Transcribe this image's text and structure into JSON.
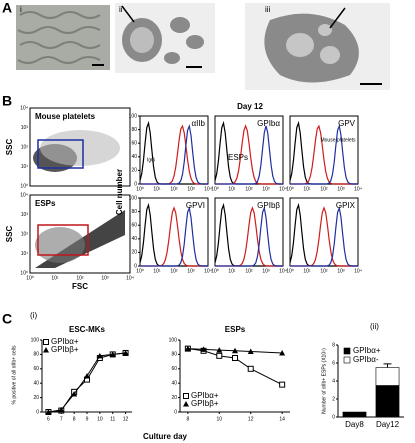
{
  "panel_labels": [
    "A",
    "B",
    "C"
  ],
  "panel_a": {
    "images": [
      "i",
      "ii",
      "iii"
    ]
  },
  "panel_b": {
    "dot_plot_labels": [
      "Mouse platelets",
      "ESPs"
    ],
    "y_label": "SSC",
    "x_label": "FSC",
    "log_ticks": [
      "10⁰",
      "10¹",
      "10²",
      "10³",
      "10⁴"
    ],
    "title": "Day 12",
    "hist_y_label": "Cell number",
    "hist_yticks": [
      0,
      20,
      40,
      60,
      80,
      100
    ],
    "histograms": [
      "αIIb",
      "GPIbα",
      "GPV",
      "GPVI",
      "GPIbβ",
      "GPIX"
    ],
    "igg_label": "IgG",
    "esps_label": "ESPs",
    "platelets_label": "Mouse platelets"
  },
  "panel_c": {
    "sub_labels": [
      "(i)",
      "(ii)"
    ],
    "x_label": "Culture day",
    "y_label": "% positive of all αIIb+ cells"
  },
  "chart_data": [
    {
      "type": "line",
      "title": "ESC-MKs",
      "x": [
        6,
        7,
        8,
        9,
        10,
        11,
        12
      ],
      "xlim": [
        5.5,
        12.5
      ],
      "xticks": [
        6,
        7,
        8,
        9,
        10,
        11,
        12
      ],
      "ylim": [
        0,
        100
      ],
      "yticks": [
        0,
        20,
        40,
        60,
        80,
        100
      ],
      "legend": "upper left",
      "series": [
        {
          "name": "GPIbα+",
          "marker": "open-square",
          "color": "#000000",
          "values": [
            0,
            2,
            28,
            45,
            75,
            80,
            82
          ]
        },
        {
          "name": "GPIbβ+",
          "marker": "filled-triangle",
          "color": "#000000",
          "values": [
            0,
            3,
            25,
            50,
            78,
            80,
            82
          ]
        }
      ]
    },
    {
      "type": "line",
      "title": "ESPs",
      "x": [
        8,
        9,
        10,
        11,
        12,
        14
      ],
      "xlim": [
        7.5,
        14.5
      ],
      "xticks": [
        8,
        10,
        12,
        14
      ],
      "ylim": [
        0,
        100
      ],
      "yticks": [
        0,
        20,
        40,
        60,
        80,
        100
      ],
      "legend": "lower left",
      "series": [
        {
          "name": "GPIbα+",
          "marker": "open-square",
          "color": "#000000",
          "values": [
            88,
            85,
            78,
            75,
            60,
            38
          ]
        },
        {
          "name": "GPIbβ+",
          "marker": "filled-triangle",
          "color": "#000000",
          "values": [
            88,
            87,
            86,
            85,
            84,
            82
          ]
        }
      ]
    },
    {
      "type": "bar",
      "stacked": true,
      "categories": [
        "Day8",
        "Day12"
      ],
      "ylim": [
        0,
        8
      ],
      "yticks": [
        0,
        2,
        4,
        6,
        8
      ],
      "y_label": "Number of αIIb+ ESPs (X10⁵)",
      "legend": "upper left",
      "series": [
        {
          "name": "GPIbα+",
          "color": "#000000",
          "values": [
            0.5,
            3.5
          ]
        },
        {
          "name": "GPIbα-",
          "color": "#ffffff",
          "values": [
            0.05,
            2.0
          ],
          "errors": [
            null,
            0.4
          ]
        }
      ]
    }
  ]
}
